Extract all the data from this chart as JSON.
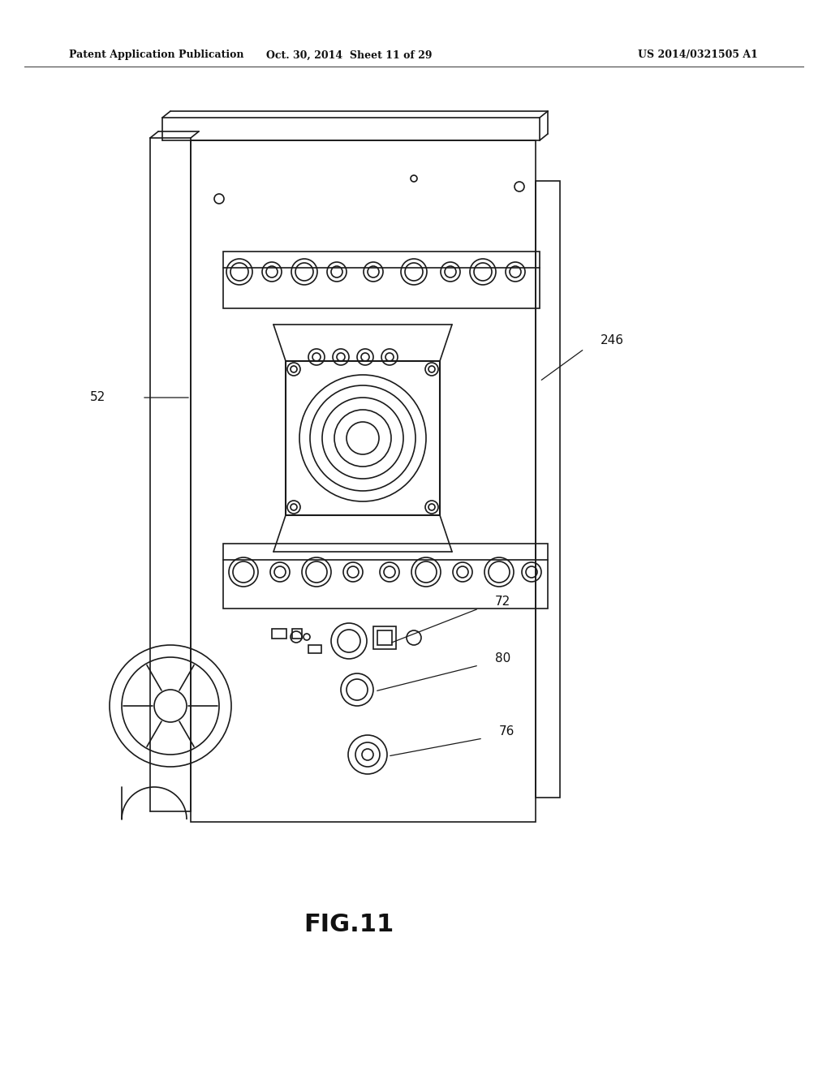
{
  "bg_color": "#ffffff",
  "header_left": "Patent Application Publication",
  "header_mid": "Oct. 30, 2014  Sheet 11 of 29",
  "header_right": "US 2014/0321505 A1",
  "fig_label": "FIG.11",
  "label_52": "52",
  "label_246": "246",
  "label_72": "72",
  "label_80": "80",
  "label_76": "76",
  "line_color": "#1a1a1a",
  "line_width": 1.2
}
